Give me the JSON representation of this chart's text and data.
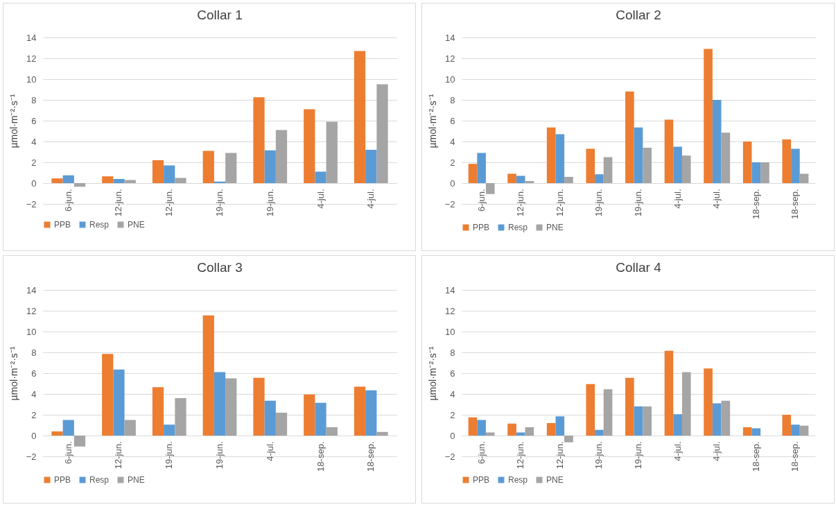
{
  "chart_data": [
    {
      "type": "bar",
      "title": "Collar 1",
      "ylabel": "µmol·m⁻²·s⁻¹",
      "categories": [
        "6-jun.",
        "12-jun.",
        "12-jun.",
        "19-jun.",
        "19-jun.",
        "4-jul.",
        "4-jul."
      ],
      "series": [
        {
          "name": "PPB",
          "color": "#ed7d31",
          "values": [
            0.45,
            0.65,
            2.2,
            3.1,
            8.25,
            7.1,
            12.7
          ]
        },
        {
          "name": "Resp",
          "color": "#5b9bd5",
          "values": [
            0.75,
            0.4,
            1.7,
            0.15,
            3.15,
            1.1,
            3.2
          ]
        },
        {
          "name": "PNE",
          "color": "#a5a5a5",
          "values": [
            -0.35,
            0.3,
            0.5,
            2.9,
            5.1,
            5.9,
            9.5
          ]
        }
      ],
      "ylim": [
        -2,
        14
      ],
      "yticks": [
        -2,
        0,
        2,
        4,
        6,
        8,
        10,
        12,
        14
      ],
      "grid": "y",
      "legend": "bottom"
    },
    {
      "type": "bar",
      "title": "Collar 2",
      "ylabel": "µmol·m⁻²·s⁻¹",
      "categories": [
        "6-jun.",
        "12-jun.",
        "12-jun.",
        "19-jun.",
        "19-jun.",
        "4-jul.",
        "4-jul.",
        "18-sep.",
        "18-sep."
      ],
      "series": [
        {
          "name": "PPB",
          "color": "#ed7d31",
          "values": [
            1.85,
            0.9,
            5.35,
            3.3,
            8.8,
            6.1,
            12.9,
            4.0,
            4.2
          ]
        },
        {
          "name": "Resp",
          "color": "#5b9bd5",
          "values": [
            2.9,
            0.7,
            4.7,
            0.85,
            5.35,
            3.5,
            8.0,
            2.0,
            3.3
          ]
        },
        {
          "name": "PNE",
          "color": "#a5a5a5",
          "values": [
            -1.05,
            0.2,
            0.6,
            2.5,
            3.4,
            2.65,
            4.85,
            2.0,
            0.9
          ]
        }
      ],
      "ylim": [
        -2,
        14
      ],
      "yticks": [
        -2,
        0,
        2,
        4,
        6,
        8,
        10,
        12,
        14
      ],
      "grid": "y",
      "legend": "bottom"
    },
    {
      "type": "bar",
      "title": "Collar 3",
      "ylabel": "µmol·m⁻²·s⁻¹",
      "categories": [
        "6-jun.",
        "12-jun.",
        "19-jun.",
        "19-jun.",
        "4-jul.",
        "18-sep.",
        "18-sep."
      ],
      "series": [
        {
          "name": "PPB",
          "color": "#ed7d31",
          "values": [
            0.4,
            7.85,
            4.65,
            11.55,
            5.55,
            3.95,
            4.7
          ]
        },
        {
          "name": "Resp",
          "color": "#5b9bd5",
          "values": [
            1.5,
            6.35,
            1.05,
            6.1,
            3.35,
            3.15,
            4.35
          ]
        },
        {
          "name": "PNE",
          "color": "#a5a5a5",
          "values": [
            -1.05,
            1.5,
            3.6,
            5.5,
            2.2,
            0.8,
            0.35
          ]
        }
      ],
      "ylim": [
        -2,
        14
      ],
      "yticks": [
        -2,
        0,
        2,
        4,
        6,
        8,
        10,
        12,
        14
      ],
      "grid": "y",
      "legend": "bottom"
    },
    {
      "type": "bar",
      "title": "Collar 4",
      "ylabel": "µmol·m⁻²·s⁻¹",
      "categories": [
        "6-jun.",
        "12-jun.",
        "12-jun.",
        "19-jun.",
        "19-jun.",
        "4-jul.",
        "4-jul.",
        "18-sep.",
        "18-sep."
      ],
      "series": [
        {
          "name": "PPB",
          "color": "#ed7d31",
          "values": [
            1.75,
            1.15,
            1.2,
            4.95,
            5.55,
            8.15,
            6.45,
            0.8,
            2.0
          ]
        },
        {
          "name": "Resp",
          "color": "#5b9bd5",
          "values": [
            1.5,
            0.3,
            1.85,
            0.55,
            2.8,
            2.05,
            3.1,
            0.7,
            1.05
          ]
        },
        {
          "name": "PNE",
          "color": "#a5a5a5",
          "values": [
            0.3,
            0.8,
            -0.65,
            4.45,
            2.8,
            6.1,
            3.35,
            null,
            0.95
          ]
        }
      ],
      "ylim": [
        -2,
        14
      ],
      "yticks": [
        -2,
        0,
        2,
        4,
        6,
        8,
        10,
        12,
        14
      ],
      "grid": "y",
      "legend": "bottom"
    }
  ]
}
